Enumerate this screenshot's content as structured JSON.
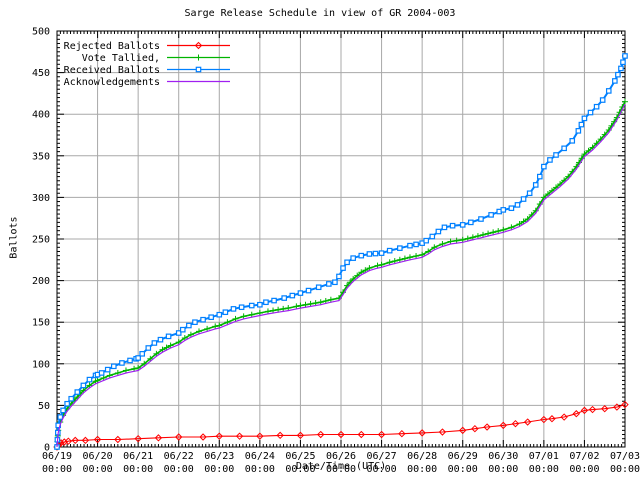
{
  "chart_data": {
    "type": "line",
    "title": "Sarge Release Schedule in view of GR 2004-003",
    "xlabel": "Date/Time (UTC)",
    "ylabel": "Ballots",
    "xlim_days": [
      0,
      14
    ],
    "ylim": [
      0,
      500
    ],
    "ytick_step": 50,
    "grid": true,
    "grid_color": "#a8a8a8",
    "frame_color": "#000000",
    "background": "#ffffff",
    "legend_position": "top-left",
    "x_ticks": [
      {
        "date": "06/19",
        "time": "00:00"
      },
      {
        "date": "06/20",
        "time": "00:00"
      },
      {
        "date": "06/21",
        "time": "00:00"
      },
      {
        "date": "06/22",
        "time": "00:00"
      },
      {
        "date": "06/23",
        "time": "00:00"
      },
      {
        "date": "06/24",
        "time": "00:00"
      },
      {
        "date": "06/25",
        "time": "00:00"
      },
      {
        "date": "06/26",
        "time": "00:00"
      },
      {
        "date": "06/27",
        "time": "00:00"
      },
      {
        "date": "06/28",
        "time": "00:00"
      },
      {
        "date": "06/29",
        "time": "00:00"
      },
      {
        "date": "06/30",
        "time": "00:00"
      },
      {
        "date": "07/01",
        "time": "00:00"
      },
      {
        "date": "07/02",
        "time": "00:00"
      },
      {
        "date": "07/03",
        "time": "00:00"
      }
    ],
    "series": [
      {
        "name": "Rejected Ballots",
        "color": "#ff0000",
        "marker": "diamond",
        "line_width": 1.1,
        "points": [
          [
            0,
            0
          ],
          [
            0.05,
            3
          ],
          [
            0.1,
            5
          ],
          [
            0.18,
            6
          ],
          [
            0.28,
            7
          ],
          [
            0.45,
            8
          ],
          [
            0.7,
            8
          ],
          [
            1.0,
            9
          ],
          [
            1.5,
            9
          ],
          [
            2.0,
            10
          ],
          [
            2.5,
            11
          ],
          [
            3.0,
            12
          ],
          [
            3.6,
            12
          ],
          [
            4.0,
            13
          ],
          [
            4.5,
            13
          ],
          [
            5.0,
            13
          ],
          [
            5.5,
            14
          ],
          [
            6.0,
            14
          ],
          [
            6.5,
            15
          ],
          [
            7.0,
            15
          ],
          [
            7.5,
            15
          ],
          [
            8.0,
            15
          ],
          [
            8.5,
            16
          ],
          [
            9.0,
            17
          ],
          [
            9.5,
            18
          ],
          [
            10.0,
            20
          ],
          [
            10.3,
            22
          ],
          [
            10.6,
            24
          ],
          [
            11.0,
            26
          ],
          [
            11.3,
            28
          ],
          [
            11.6,
            30
          ],
          [
            12.0,
            33
          ],
          [
            12.2,
            34
          ],
          [
            12.5,
            36
          ],
          [
            12.8,
            40
          ],
          [
            13.0,
            44
          ],
          [
            13.2,
            45
          ],
          [
            13.5,
            46
          ],
          [
            13.8,
            48
          ],
          [
            14.0,
            51
          ]
        ]
      },
      {
        "name": "Vote Tallied,",
        "color": "#00b400",
        "marker": "plus",
        "line_width": 1.6,
        "points": [
          [
            0,
            0
          ],
          [
            0.03,
            20
          ],
          [
            0.08,
            30
          ],
          [
            0.15,
            38
          ],
          [
            0.25,
            46
          ],
          [
            0.35,
            52
          ],
          [
            0.5,
            60
          ],
          [
            0.65,
            68
          ],
          [
            0.8,
            74
          ],
          [
            0.95,
            79
          ],
          [
            1.0,
            80
          ],
          [
            1.15,
            83
          ],
          [
            1.3,
            86
          ],
          [
            1.5,
            89
          ],
          [
            1.7,
            92
          ],
          [
            1.9,
            94
          ],
          [
            2.0,
            95
          ],
          [
            2.15,
            100
          ],
          [
            2.3,
            106
          ],
          [
            2.45,
            112
          ],
          [
            2.6,
            117
          ],
          [
            2.8,
            122
          ],
          [
            3.0,
            126
          ],
          [
            3.15,
            131
          ],
          [
            3.3,
            135
          ],
          [
            3.5,
            139
          ],
          [
            3.7,
            142
          ],
          [
            3.9,
            145
          ],
          [
            4.0,
            146
          ],
          [
            4.2,
            150
          ],
          [
            4.4,
            154
          ],
          [
            4.6,
            157
          ],
          [
            4.8,
            159
          ],
          [
            5.0,
            161
          ],
          [
            5.2,
            163
          ],
          [
            5.45,
            165
          ],
          [
            5.7,
            167
          ],
          [
            5.9,
            169
          ],
          [
            6.0,
            170
          ],
          [
            6.25,
            172
          ],
          [
            6.5,
            174
          ],
          [
            6.75,
            177
          ],
          [
            6.95,
            179
          ],
          [
            7.05,
            186
          ],
          [
            7.15,
            194
          ],
          [
            7.3,
            202
          ],
          [
            7.5,
            210
          ],
          [
            7.7,
            215
          ],
          [
            7.9,
            218
          ],
          [
            8.0,
            219
          ],
          [
            8.2,
            222
          ],
          [
            8.45,
            225
          ],
          [
            8.7,
            228
          ],
          [
            9.0,
            231
          ],
          [
            9.15,
            235
          ],
          [
            9.3,
            240
          ],
          [
            9.5,
            244
          ],
          [
            9.7,
            247
          ],
          [
            10.0,
            249
          ],
          [
            10.25,
            252
          ],
          [
            10.5,
            255
          ],
          [
            10.75,
            258
          ],
          [
            11.0,
            261
          ],
          [
            11.2,
            264
          ],
          [
            11.4,
            268
          ],
          [
            11.6,
            274
          ],
          [
            11.8,
            284
          ],
          [
            11.9,
            292
          ],
          [
            12.0,
            300
          ],
          [
            12.2,
            308
          ],
          [
            12.4,
            316
          ],
          [
            12.6,
            325
          ],
          [
            12.8,
            337
          ],
          [
            13.0,
            352
          ],
          [
            13.2,
            360
          ],
          [
            13.4,
            370
          ],
          [
            13.6,
            381
          ],
          [
            13.8,
            396
          ],
          [
            14.0,
            415
          ]
        ]
      },
      {
        "name": "Received Ballots",
        "color": "#0080ff",
        "marker": "square",
        "line_width": 2.0,
        "points": [
          [
            0,
            0
          ],
          [
            0.03,
            26
          ],
          [
            0.08,
            36
          ],
          [
            0.15,
            44
          ],
          [
            0.25,
            52
          ],
          [
            0.35,
            58
          ],
          [
            0.5,
            66
          ],
          [
            0.65,
            74
          ],
          [
            0.8,
            81
          ],
          [
            0.95,
            86
          ],
          [
            1.0,
            87
          ],
          [
            1.1,
            89
          ],
          [
            1.25,
            93
          ],
          [
            1.4,
            97
          ],
          [
            1.6,
            101
          ],
          [
            1.8,
            104
          ],
          [
            1.95,
            106
          ],
          [
            2.0,
            107
          ],
          [
            2.1,
            112
          ],
          [
            2.25,
            119
          ],
          [
            2.4,
            125
          ],
          [
            2.55,
            129
          ],
          [
            2.75,
            133
          ],
          [
            3.0,
            137
          ],
          [
            3.1,
            141
          ],
          [
            3.25,
            146
          ],
          [
            3.4,
            150
          ],
          [
            3.6,
            153
          ],
          [
            3.8,
            156
          ],
          [
            4.0,
            159
          ],
          [
            4.15,
            162
          ],
          [
            4.35,
            166
          ],
          [
            4.55,
            168
          ],
          [
            4.8,
            170
          ],
          [
            5.0,
            171
          ],
          [
            5.15,
            174
          ],
          [
            5.35,
            176
          ],
          [
            5.6,
            179
          ],
          [
            5.8,
            182
          ],
          [
            6.0,
            185
          ],
          [
            6.2,
            188
          ],
          [
            6.45,
            192
          ],
          [
            6.7,
            196
          ],
          [
            6.85,
            198
          ],
          [
            6.95,
            205
          ],
          [
            7.05,
            215
          ],
          [
            7.15,
            222
          ],
          [
            7.3,
            227
          ],
          [
            7.5,
            230
          ],
          [
            7.7,
            232
          ],
          [
            8.0,
            233
          ],
          [
            8.2,
            236
          ],
          [
            8.45,
            239
          ],
          [
            8.7,
            242
          ],
          [
            9.0,
            245
          ],
          [
            9.1,
            248
          ],
          [
            9.25,
            253
          ],
          [
            9.4,
            259
          ],
          [
            9.55,
            264
          ],
          [
            9.75,
            266
          ],
          [
            10.0,
            267
          ],
          [
            10.2,
            270
          ],
          [
            10.45,
            274
          ],
          [
            10.7,
            279
          ],
          [
            10.9,
            283
          ],
          [
            11.0,
            285
          ],
          [
            11.2,
            287
          ],
          [
            11.35,
            291
          ],
          [
            11.5,
            298
          ],
          [
            11.65,
            305
          ],
          [
            11.8,
            315
          ],
          [
            11.9,
            325
          ],
          [
            12.0,
            337
          ],
          [
            12.15,
            345
          ],
          [
            12.3,
            351
          ],
          [
            12.5,
            359
          ],
          [
            12.7,
            368
          ],
          [
            12.85,
            380
          ],
          [
            13.0,
            395
          ],
          [
            13.15,
            402
          ],
          [
            13.3,
            409
          ],
          [
            13.45,
            417
          ],
          [
            13.6,
            428
          ],
          [
            13.75,
            440
          ],
          [
            13.9,
            455
          ],
          [
            14.0,
            470
          ]
        ]
      },
      {
        "name": "Acknowledgements",
        "color": "#a020f0",
        "marker": "none",
        "line_width": 1.2,
        "points": [
          [
            0,
            0
          ],
          [
            0.03,
            17
          ],
          [
            0.08,
            27
          ],
          [
            0.15,
            35
          ],
          [
            0.25,
            43
          ],
          [
            0.35,
            49
          ],
          [
            0.5,
            57
          ],
          [
            0.65,
            65
          ],
          [
            0.8,
            71
          ],
          [
            0.95,
            76
          ],
          [
            1.0,
            77
          ],
          [
            1.15,
            80
          ],
          [
            1.3,
            83
          ],
          [
            1.5,
            86
          ],
          [
            1.7,
            89
          ],
          [
            1.9,
            91
          ],
          [
            2.0,
            92
          ],
          [
            2.15,
            97
          ],
          [
            2.3,
            103
          ],
          [
            2.45,
            109
          ],
          [
            2.6,
            114
          ],
          [
            2.8,
            119
          ],
          [
            3.0,
            123
          ],
          [
            3.15,
            128
          ],
          [
            3.3,
            132
          ],
          [
            3.5,
            136
          ],
          [
            3.7,
            139
          ],
          [
            3.9,
            142
          ],
          [
            4.0,
            143
          ],
          [
            4.2,
            147
          ],
          [
            4.4,
            151
          ],
          [
            4.6,
            154
          ],
          [
            4.8,
            156
          ],
          [
            5.0,
            158
          ],
          [
            5.2,
            160
          ],
          [
            5.45,
            162
          ],
          [
            5.7,
            164
          ],
          [
            5.9,
            166
          ],
          [
            6.0,
            167
          ],
          [
            6.25,
            169
          ],
          [
            6.5,
            171
          ],
          [
            6.75,
            174
          ],
          [
            6.95,
            176
          ],
          [
            7.05,
            183
          ],
          [
            7.15,
            191
          ],
          [
            7.3,
            199
          ],
          [
            7.5,
            207
          ],
          [
            7.7,
            212
          ],
          [
            7.9,
            215
          ],
          [
            8.0,
            216
          ],
          [
            8.2,
            219
          ],
          [
            8.45,
            222
          ],
          [
            8.7,
            225
          ],
          [
            9.0,
            228
          ],
          [
            9.15,
            232
          ],
          [
            9.3,
            237
          ],
          [
            9.5,
            241
          ],
          [
            9.7,
            244
          ],
          [
            10.0,
            246
          ],
          [
            10.25,
            249
          ],
          [
            10.5,
            252
          ],
          [
            10.75,
            255
          ],
          [
            11.0,
            258
          ],
          [
            11.2,
            261
          ],
          [
            11.4,
            265
          ],
          [
            11.6,
            271
          ],
          [
            11.8,
            281
          ],
          [
            11.9,
            289
          ],
          [
            12.0,
            297
          ],
          [
            12.2,
            305
          ],
          [
            12.4,
            313
          ],
          [
            12.6,
            322
          ],
          [
            12.8,
            334
          ],
          [
            13.0,
            349
          ],
          [
            13.2,
            357
          ],
          [
            13.4,
            367
          ],
          [
            13.6,
            378
          ],
          [
            13.8,
            393
          ],
          [
            14.0,
            412
          ]
        ]
      }
    ]
  }
}
